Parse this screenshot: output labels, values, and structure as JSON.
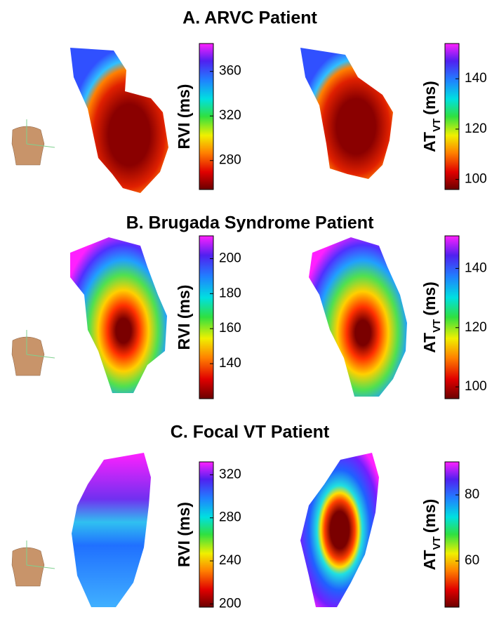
{
  "panels": [
    {
      "title": "A. ARVC Patient",
      "colorbars": [
        {
          "label": "RVI (ms)",
          "range": [
            254,
            385
          ],
          "ticks": [
            280,
            320,
            360
          ]
        },
        {
          "label": "AT",
          "subscript": "VT",
          "unit": "(ms)",
          "range": [
            96,
            154
          ],
          "ticks": [
            100,
            120,
            140
          ]
        }
      ]
    },
    {
      "title": "B. Brugada Syndrome Patient",
      "colorbars": [
        {
          "label": "RVI (ms)",
          "range": [
            120,
            213
          ],
          "ticks": [
            140,
            160,
            180,
            200
          ]
        },
        {
          "label": "AT",
          "subscript": "VT",
          "unit": "(ms)",
          "range": [
            96,
            151
          ],
          "ticks": [
            100,
            120,
            140
          ]
        }
      ]
    },
    {
      "title": "C. Focal VT Patient",
      "colorbars": [
        {
          "label": "RVI (ms)",
          "range": [
            197,
            332
          ],
          "ticks": [
            200,
            240,
            280,
            320
          ]
        },
        {
          "label": "AT",
          "subscript": "VT",
          "unit": "(ms)",
          "range": [
            46,
            90
          ],
          "ticks": [
            60,
            80
          ]
        }
      ]
    }
  ]
}
